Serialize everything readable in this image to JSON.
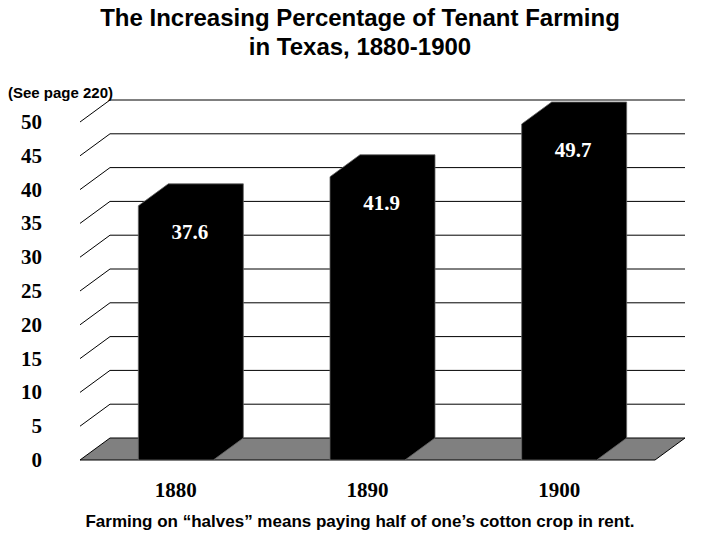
{
  "chart_data": {
    "type": "bar",
    "title": "The Increasing Percentage of Tenant Farming\nin Texas, 1880-1900",
    "annotations": [
      "(See page 220)",
      "Farming on “halves” means paying half of one’s cotton crop in rent."
    ],
    "categories": [
      "1880",
      "1890",
      "1900"
    ],
    "values": [
      37.6,
      41.9,
      49.7
    ],
    "color": "#000000",
    "ylim": [
      0,
      50
    ],
    "yticks": [
      0,
      5,
      10,
      15,
      20,
      25,
      30,
      35,
      40,
      45,
      50
    ],
    "grid": true,
    "data_labels": true
  }
}
